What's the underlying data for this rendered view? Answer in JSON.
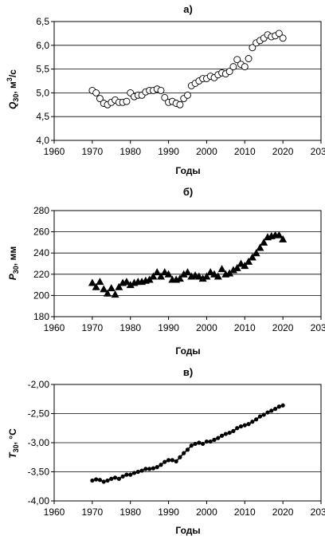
{
  "chart_data": [
    {
      "type": "scatter",
      "panel_label": "а)",
      "ylabel": {
        "symbol": "Q",
        "subscript": "30",
        "rest": ", м",
        "sup": "3",
        "tail": "/с"
      },
      "xlabel": "Годы",
      "xlim": [
        1960,
        2030
      ],
      "ylim": [
        4.0,
        6.5
      ],
      "xticks": [
        "1960",
        "1970",
        "1980",
        "1990",
        "2000",
        "2010",
        "2020",
        "2030"
      ],
      "yticks": [
        "4,0",
        "4,5",
        "5,0",
        "5,5",
        "6,0",
        "6,5"
      ],
      "marker": "circle-open",
      "x": [
        1970,
        1971,
        1972,
        1973,
        1974,
        1975,
        1976,
        1977,
        1978,
        1979,
        1980,
        1981,
        1982,
        1983,
        1984,
        1985,
        1986,
        1987,
        1988,
        1989,
        1990,
        1991,
        1992,
        1993,
        1994,
        1995,
        1996,
        1997,
        1998,
        1999,
        2000,
        2001,
        2002,
        2003,
        2004,
        2005,
        2006,
        2007,
        2008,
        2009,
        2010,
        2011,
        2012,
        2013,
        2014,
        2015,
        2016,
        2017,
        2018,
        2019,
        2020
      ],
      "y": [
        5.05,
        5.0,
        4.88,
        4.78,
        4.75,
        4.8,
        4.85,
        4.8,
        4.8,
        4.82,
        5.0,
        4.92,
        4.95,
        4.95,
        5.02,
        5.05,
        5.05,
        5.08,
        5.05,
        4.9,
        4.8,
        4.82,
        4.78,
        4.75,
        4.88,
        4.95,
        5.15,
        5.2,
        5.25,
        5.3,
        5.3,
        5.35,
        5.32,
        5.38,
        5.42,
        5.4,
        5.45,
        5.55,
        5.7,
        5.6,
        5.55,
        5.72,
        5.95,
        6.05,
        6.1,
        6.15,
        6.22,
        6.18,
        6.2,
        6.25,
        6.15
      ]
    },
    {
      "type": "scatter",
      "panel_label": "б)",
      "ylabel": {
        "symbol": "P",
        "subscript": "30",
        "rest": ", мм",
        "sup": "",
        "tail": ""
      },
      "xlabel": "Годы",
      "xlim": [
        1960,
        2030
      ],
      "ylim": [
        180,
        280
      ],
      "xticks": [
        "1960",
        "1970",
        "1980",
        "1990",
        "2000",
        "2010",
        "2020",
        "2030"
      ],
      "yticks": [
        "180",
        "200",
        "220",
        "240",
        "260",
        "280"
      ],
      "marker": "triangle",
      "x": [
        1970,
        1971,
        1972,
        1973,
        1974,
        1975,
        1976,
        1977,
        1978,
        1979,
        1980,
        1981,
        1982,
        1983,
        1984,
        1985,
        1986,
        1987,
        1988,
        1989,
        1990,
        1991,
        1992,
        1993,
        1994,
        1995,
        1996,
        1997,
        1998,
        1999,
        2000,
        2001,
        2002,
        2003,
        2004,
        2005,
        2006,
        2007,
        2008,
        2009,
        2010,
        2011,
        2012,
        2013,
        2014,
        2015,
        2016,
        2017,
        2018,
        2019,
        2020
      ],
      "y": [
        212,
        208,
        213,
        206,
        202,
        207,
        201,
        208,
        212,
        213,
        210,
        212,
        213,
        213,
        214,
        215,
        218,
        222,
        218,
        222,
        220,
        215,
        215,
        216,
        220,
        222,
        218,
        219,
        218,
        216,
        218,
        222,
        220,
        218,
        225,
        220,
        221,
        224,
        226,
        230,
        228,
        232,
        236,
        240,
        245,
        250,
        255,
        256,
        257,
        257,
        253
      ]
    },
    {
      "type": "line",
      "panel_label": "в)",
      "ylabel": {
        "symbol": "T",
        "subscript": "30",
        "rest": ", °C",
        "sup": "",
        "tail": ""
      },
      "xlabel": "Годы",
      "xlim": [
        1960,
        2030
      ],
      "ylim": [
        -4.0,
        -2.0
      ],
      "xticks": [
        "1960",
        "1970",
        "1980",
        "1990",
        "2000",
        "2010",
        "2020",
        "2030"
      ],
      "yticks": [
        "-4,00",
        "-3,50",
        "-3,00",
        "-2,50",
        "-2,00"
      ],
      "marker": "dot",
      "x": [
        1970,
        1971,
        1972,
        1973,
        1974,
        1975,
        1976,
        1977,
        1978,
        1979,
        1980,
        1981,
        1982,
        1983,
        1984,
        1985,
        1986,
        1987,
        1988,
        1989,
        1990,
        1991,
        1992,
        1993,
        1994,
        1995,
        1996,
        1997,
        1998,
        1999,
        2000,
        2001,
        2002,
        2003,
        2004,
        2005,
        2006,
        2007,
        2008,
        2009,
        2010,
        2011,
        2012,
        2013,
        2014,
        2015,
        2016,
        2017,
        2018,
        2019,
        2020
      ],
      "y": [
        -3.65,
        -3.63,
        -3.64,
        -3.67,
        -3.65,
        -3.62,
        -3.6,
        -3.62,
        -3.58,
        -3.55,
        -3.55,
        -3.52,
        -3.5,
        -3.48,
        -3.45,
        -3.45,
        -3.44,
        -3.42,
        -3.38,
        -3.33,
        -3.3,
        -3.3,
        -3.32,
        -3.25,
        -3.18,
        -3.12,
        -3.05,
        -3.02,
        -3.0,
        -3.02,
        -2.98,
        -2.98,
        -2.95,
        -2.92,
        -2.88,
        -2.85,
        -2.83,
        -2.8,
        -2.75,
        -2.72,
        -2.7,
        -2.68,
        -2.64,
        -2.6,
        -2.55,
        -2.52,
        -2.48,
        -2.45,
        -2.42,
        -2.38,
        -2.36
      ]
    }
  ]
}
